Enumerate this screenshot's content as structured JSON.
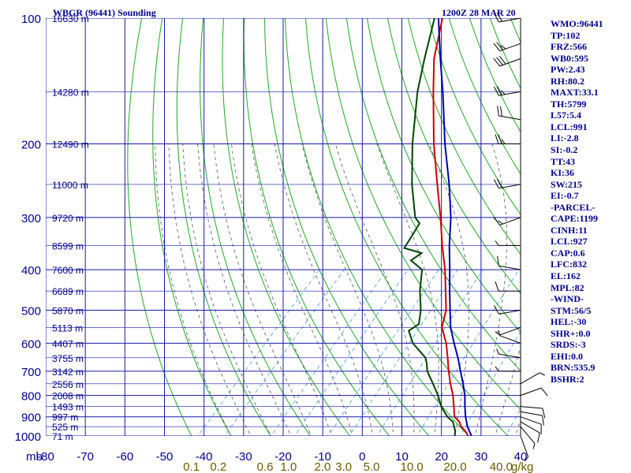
{
  "station_title": "WBGR (96441) Sounding",
  "time_title": "1200Z 28 MAR 20",
  "chart_data": {
    "type": "line",
    "diagram": "skew-T log-P",
    "y_axis": {
      "unit_label": "mb",
      "scale": "log",
      "range": [
        1000,
        100
      ],
      "ticks": [
        100,
        200,
        300,
        400,
        500,
        600,
        700,
        800,
        900,
        1000
      ]
    },
    "x_axis": {
      "range": [
        -80,
        40
      ],
      "ticks": [
        -80,
        -70,
        -60,
        -50,
        -40,
        -30,
        -20,
        -10,
        0,
        10,
        20,
        30,
        40
      ],
      "tick_labels": [
        "-80",
        "-70",
        "-60",
        "-50",
        "-40",
        "-30",
        "-20",
        "-10",
        "0",
        "10",
        "20",
        "30",
        "40"
      ]
    },
    "mixing_ratio": {
      "unit_label": "g/kg",
      "values": [
        0.1,
        0.2,
        0.6,
        1.0,
        2.0,
        3.0,
        5.0,
        10.0,
        20.0,
        40.0
      ],
      "labels": [
        "0.1",
        "0.2",
        "0.6",
        "1.0",
        "2.0",
        "3.0",
        "5.0",
        "10.0",
        "20.0",
        "40.0"
      ]
    },
    "height_labels": [
      {
        "p": 100,
        "label": "16630 m"
      },
      {
        "p": 150,
        "label": "14280 m"
      },
      {
        "p": 200,
        "label": "12490 m"
      },
      {
        "p": 250,
        "label": "11000 m"
      },
      {
        "p": 300,
        "label": "9720 m"
      },
      {
        "p": 350,
        "label": "8599 m"
      },
      {
        "p": 400,
        "label": "7600 m"
      },
      {
        "p": 450,
        "label": "6689 m"
      },
      {
        "p": 500,
        "label": "5870 m"
      },
      {
        "p": 550,
        "label": "5113 m"
      },
      {
        "p": 600,
        "label": "4407 m"
      },
      {
        "p": 650,
        "label": "3755 m"
      },
      {
        "p": 700,
        "label": "3142 m"
      },
      {
        "p": 750,
        "label": "2556 m"
      },
      {
        "p": 800,
        "label": "2008 m"
      },
      {
        "p": 850,
        "label": "1493 m"
      },
      {
        "p": 900,
        "label": "997 m"
      },
      {
        "p": 950,
        "label": "525 m"
      },
      {
        "p": 1000,
        "label": "71 m"
      }
    ],
    "series": [
      {
        "key": "temperature",
        "color": "#cc0000",
        "points": [
          [
            1000,
            26.8
          ],
          [
            975,
            25.0
          ],
          [
            950,
            22.8
          ],
          [
            925,
            21.2
          ],
          [
            900,
            18.8
          ],
          [
            850,
            16.2
          ],
          [
            800,
            13.4
          ],
          [
            750,
            10.0
          ],
          [
            700,
            6.6
          ],
          [
            650,
            3.2
          ],
          [
            600,
            -0.6
          ],
          [
            550,
            -5.4
          ],
          [
            500,
            -8.4
          ],
          [
            450,
            -13.0
          ],
          [
            400,
            -18.2
          ],
          [
            350,
            -24.6
          ],
          [
            300,
            -31.6
          ],
          [
            250,
            -40.2
          ],
          [
            200,
            -50.6
          ],
          [
            150,
            -63.0
          ],
          [
            125,
            -70.6
          ],
          [
            100,
            -78.0
          ]
        ]
      },
      {
        "key": "dewpoint",
        "color": "#004400",
        "points": [
          [
            1000,
            23.4
          ],
          [
            975,
            22.4
          ],
          [
            950,
            21.0
          ],
          [
            925,
            19.6
          ],
          [
            900,
            17.0
          ],
          [
            850,
            13.0
          ],
          [
            800,
            9.6
          ],
          [
            750,
            5.6
          ],
          [
            700,
            1.2
          ],
          [
            670,
            -0.8
          ],
          [
            650,
            -2.4
          ],
          [
            600,
            -9.0
          ],
          [
            560,
            -13.0
          ],
          [
            540,
            -12.0
          ],
          [
            500,
            -14.8
          ],
          [
            450,
            -19.5
          ],
          [
            400,
            -24.0
          ],
          [
            380,
            -29.0
          ],
          [
            365,
            -28.0
          ],
          [
            355,
            -33.6
          ],
          [
            330,
            -34.6
          ],
          [
            310,
            -35.5
          ],
          [
            300,
            -38.0
          ],
          [
            250,
            -46.6
          ],
          [
            200,
            -56.0
          ],
          [
            150,
            -67.0
          ],
          [
            125,
            -73.0
          ],
          [
            100,
            -80.0
          ]
        ]
      },
      {
        "key": "parcel",
        "color": "#0000aa",
        "points": [
          [
            1000,
            27.6
          ],
          [
            950,
            24.4
          ],
          [
            900,
            21.6
          ],
          [
            850,
            19.0
          ],
          [
            800,
            16.4
          ],
          [
            750,
            13.2
          ],
          [
            700,
            9.6
          ],
          [
            650,
            5.8
          ],
          [
            600,
            1.4
          ],
          [
            550,
            -3.2
          ],
          [
            500,
            -7.4
          ],
          [
            450,
            -12.0
          ],
          [
            400,
            -17.0
          ],
          [
            350,
            -22.8
          ],
          [
            300,
            -29.0
          ],
          [
            250,
            -37.2
          ],
          [
            200,
            -47.8
          ],
          [
            150,
            -60.6
          ],
          [
            125,
            -69.0
          ],
          [
            100,
            -79.0
          ]
        ]
      }
    ],
    "winds": [
      {
        "p": 1000,
        "dir": 160,
        "spd": 5
      },
      {
        "p": 950,
        "dir": 140,
        "spd": 8
      },
      {
        "p": 925,
        "dir": 120,
        "spd": 12
      },
      {
        "p": 900,
        "dir": 110,
        "spd": 14
      },
      {
        "p": 875,
        "dir": 100,
        "spd": 12
      },
      {
        "p": 850,
        "dir": 95,
        "spd": 10
      },
      {
        "p": 800,
        "dir": 70,
        "spd": 10
      },
      {
        "p": 750,
        "dir": 60,
        "spd": 8
      },
      {
        "p": 700,
        "dir": 270,
        "spd": 5
      },
      {
        "p": 650,
        "dir": 280,
        "spd": 5
      },
      {
        "p": 600,
        "dir": 290,
        "spd": 5
      },
      {
        "p": 550,
        "dir": 250,
        "spd": 8
      },
      {
        "p": 500,
        "dir": 260,
        "spd": 10
      },
      {
        "p": 450,
        "dir": 270,
        "spd": 10
      },
      {
        "p": 400,
        "dir": 280,
        "spd": 10
      },
      {
        "p": 350,
        "dir": 270,
        "spd": 5
      },
      {
        "p": 300,
        "dir": 250,
        "spd": 15
      },
      {
        "p": 250,
        "dir": 260,
        "spd": 20
      },
      {
        "p": 200,
        "dir": 270,
        "spd": 25
      },
      {
        "p": 175,
        "dir": 280,
        "spd": 20
      },
      {
        "p": 150,
        "dir": 260,
        "spd": 25
      },
      {
        "p": 125,
        "dir": 250,
        "spd": 30
      },
      {
        "p": 115,
        "dir": 250,
        "spd": 25
      },
      {
        "p": 100,
        "dir": 260,
        "spd": 20
      }
    ]
  },
  "indices": [
    "WMO:96441",
    "TP:102",
    "FRZ:566",
    "WB0:595",
    "PW:2.43",
    "RH:80.2",
    "MAXT:33.1",
    "TH:5799",
    "L57:5.4",
    "LCL:991",
    "LI:-2.8",
    "SI:-0.2",
    "TT:43",
    "KI:36",
    "SW:215",
    "EI:-0.7",
    "-PARCEL-",
    "CAPE:1199",
    "CINH:11",
    "LCL:927",
    "CAP:0.6",
    "LFC:832",
    "EL:162",
    "MPL:82",
    "-WIND-",
    "STM:56/5",
    "HEL:-30",
    "SHR+:0.0",
    "SRDS:-3",
    "EHI:0.0",
    "BRN:535.9",
    "BSHR:2"
  ]
}
